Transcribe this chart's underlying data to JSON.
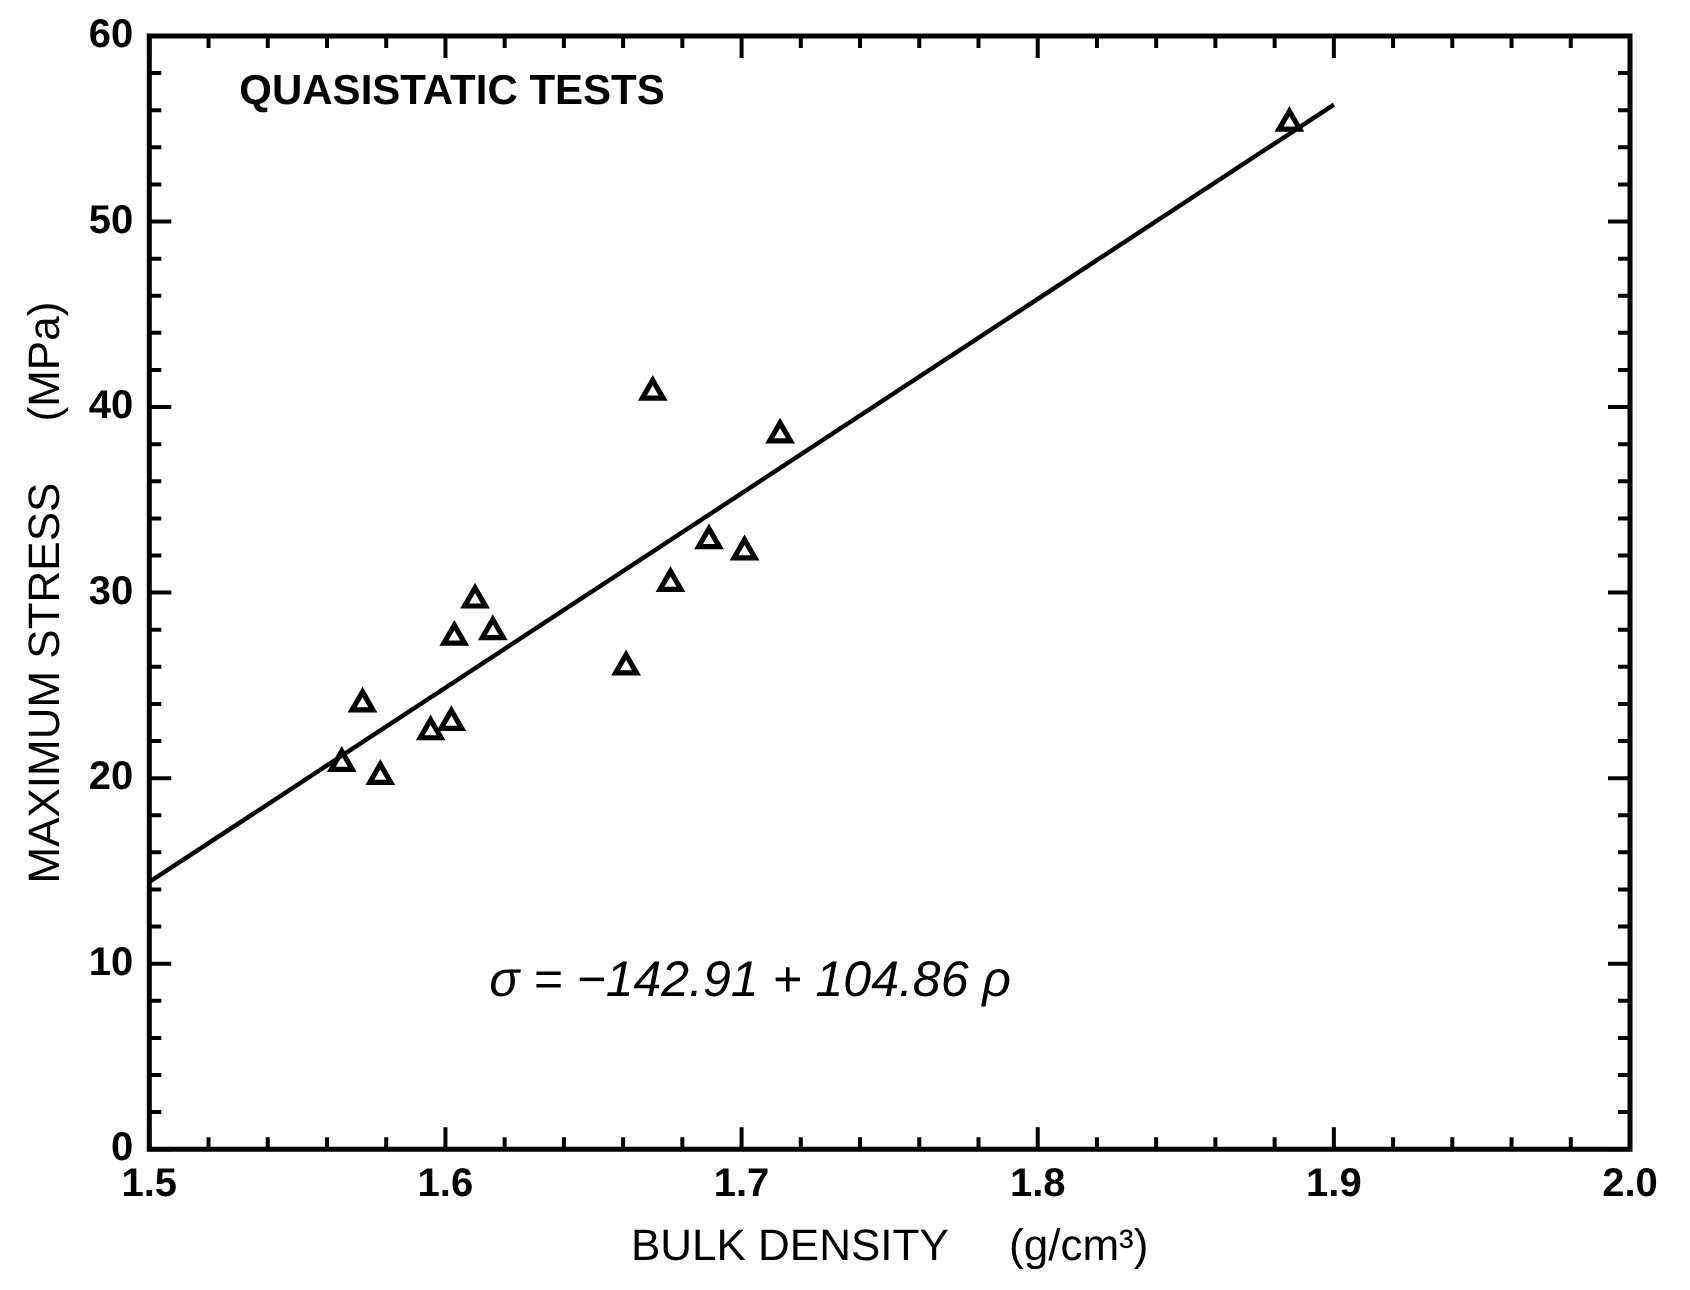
{
  "chart_data": {
    "type": "scatter",
    "xlabel": "BULK DENSITY     (g/cm³)",
    "ylabel": "MAXIMUM STRESS     (MPa)",
    "annotations": [
      "QUASISTATIC TESTS",
      "σ = −142.91 + 104.86 ρ"
    ],
    "xlim": [
      1.5,
      2.0
    ],
    "xticks": [
      1.5,
      {
        "value": 1.52,
        "label": null
      },
      {
        "value": 1.54,
        "label": null
      },
      {
        "value": 1.56,
        "label": null
      },
      {
        "value": 1.58,
        "label": null
      },
      1.6,
      {
        "value": 1.62,
        "label": null
      },
      {
        "value": 1.64,
        "label": null
      },
      {
        "value": 1.66,
        "label": null
      },
      {
        "value": 1.68,
        "label": null
      },
      1.7,
      {
        "value": 1.72,
        "label": null
      },
      {
        "value": 1.74,
        "label": null
      },
      {
        "value": 1.76,
        "label": null
      },
      {
        "value": 1.78,
        "label": null
      },
      1.8,
      {
        "value": 1.82,
        "label": null
      },
      {
        "value": 1.84,
        "label": null
      },
      {
        "value": 1.86,
        "label": null
      },
      {
        "value": 1.88,
        "label": null
      },
      1.9,
      {
        "value": 1.92,
        "label": null
      },
      {
        "value": 1.94,
        "label": null
      },
      {
        "value": 1.96,
        "label": null
      },
      {
        "value": 1.98,
        "label": null
      },
      {
        "value": 2.0,
        "label": "2.0"
      }
    ],
    "ylim": [
      0,
      60
    ],
    "yticks": [
      0,
      {
        "value": 2,
        "label": null
      },
      {
        "value": 4,
        "label": null
      },
      {
        "value": 6,
        "label": null
      },
      {
        "value": 8,
        "label": null
      },
      10,
      {
        "value": 12,
        "label": null
      },
      {
        "value": 14,
        "label": null
      },
      {
        "value": 16,
        "label": null
      },
      {
        "value": 18,
        "label": null
      },
      20,
      {
        "value": 22,
        "label": null
      },
      {
        "value": 24,
        "label": null
      },
      {
        "value": 26,
        "label": null
      },
      {
        "value": 28,
        "label": null
      },
      30,
      {
        "value": 32,
        "label": null
      },
      {
        "value": 34,
        "label": null
      },
      {
        "value": 36,
        "label": null
      },
      {
        "value": 38,
        "label": null
      },
      40,
      {
        "value": 42,
        "label": null
      },
      {
        "value": 44,
        "label": null
      },
      {
        "value": 46,
        "label": null
      },
      {
        "value": 48,
        "label": null
      },
      50,
      {
        "value": 52,
        "label": null
      },
      {
        "value": 54,
        "label": null
      },
      {
        "value": 56,
        "label": null
      },
      {
        "value": 58,
        "label": null
      },
      60
    ],
    "grid": false,
    "legend": false,
    "series": [
      {
        "type": "scatter",
        "color": "#000000",
        "marker": "triangle",
        "x": [
          1.565,
          1.578,
          1.572,
          1.595,
          1.602,
          1.603,
          1.61,
          1.616,
          1.661,
          1.676,
          1.689,
          1.701,
          1.67,
          1.713,
          1.885
        ],
        "values": [
          20.8,
          20.1,
          24.0,
          22.5,
          23.0,
          27.6,
          29.6,
          27.9,
          26.0,
          30.5,
          32.8,
          32.2,
          40.8,
          38.5,
          55.3
        ]
      },
      {
        "type": "line",
        "color": "#000000",
        "marker": "none",
        "line_style": "solid",
        "x": [
          1.5,
          1.9
        ],
        "values": [
          14.4,
          56.3
        ]
      }
    ]
  }
}
